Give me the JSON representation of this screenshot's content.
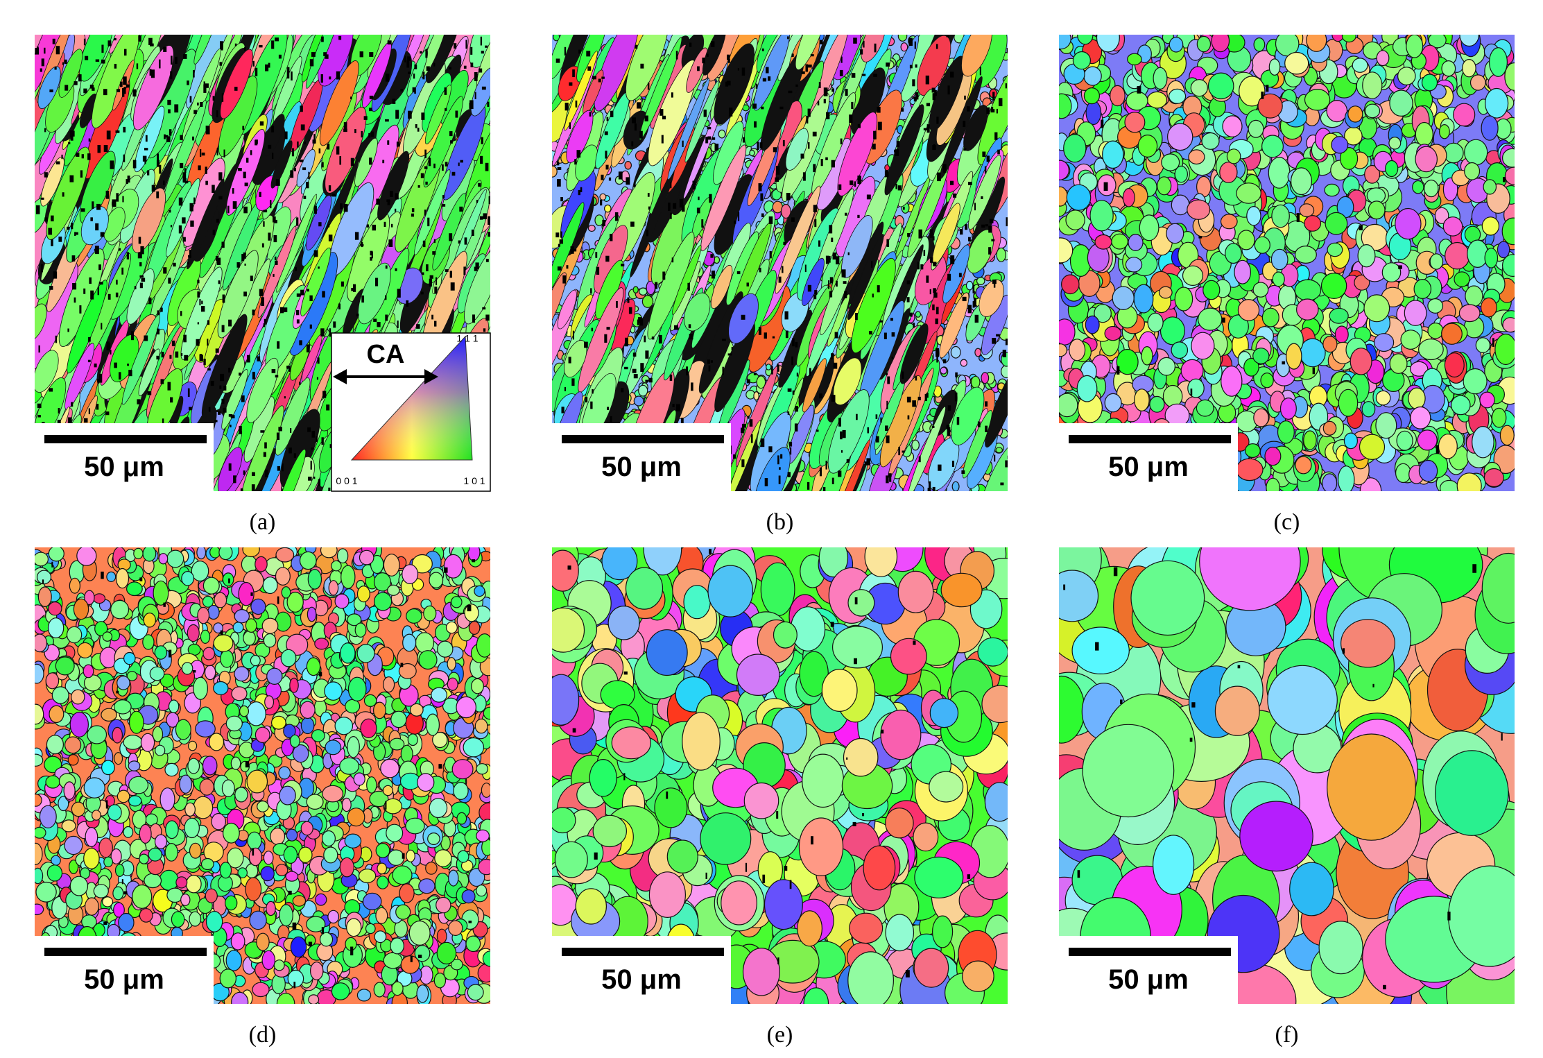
{
  "panels": [
    {
      "label": "(a)",
      "scale_bar": "50 μm"
    },
    {
      "label": "(b)",
      "scale_bar": "50 μm"
    },
    {
      "label": "(c)",
      "scale_bar": "50 μm"
    },
    {
      "label": "(d)",
      "scale_bar": "50 μm"
    },
    {
      "label": "(e)",
      "scale_bar": "50 μm"
    },
    {
      "label": "(f)",
      "scale_bar": "50 μm"
    }
  ],
  "legend": {
    "axis": "CA",
    "corner_111": "1 1 1",
    "corner_001": "0 0 1",
    "corner_101": "1 0 1"
  }
}
